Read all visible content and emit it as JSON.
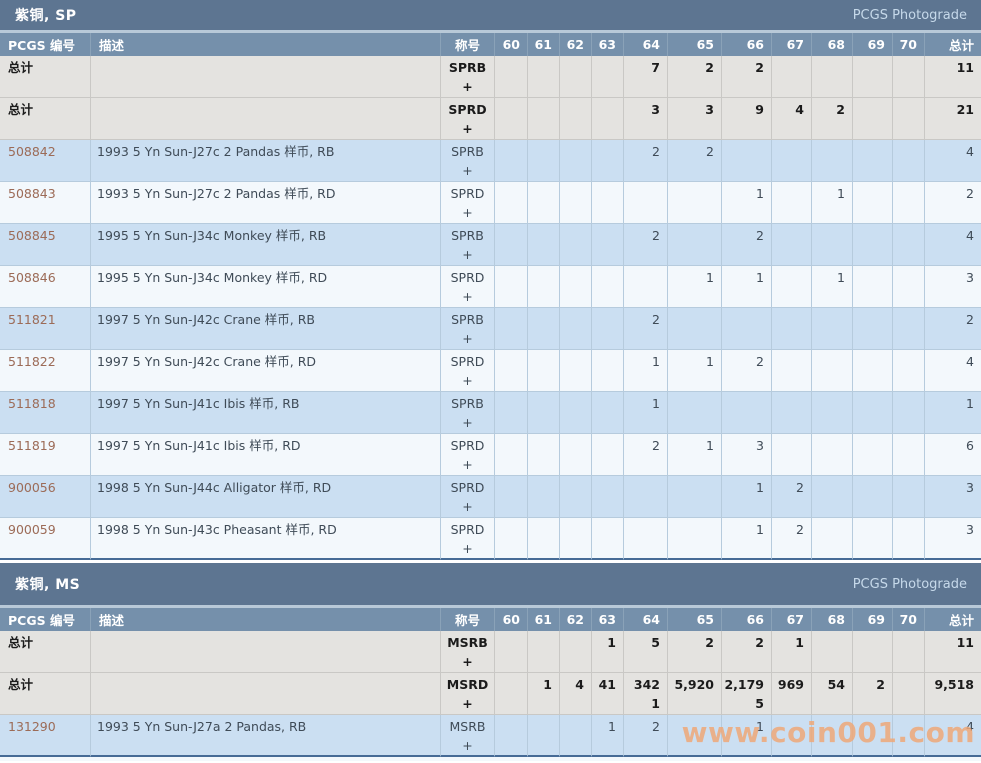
{
  "table_headers": {
    "number": "PCGS 编号",
    "description": "描述",
    "designation": "称号",
    "total": "总计"
  },
  "grade_columns": [
    "60",
    "61",
    "62",
    "63",
    "64",
    "65",
    "66",
    "67",
    "68",
    "69",
    "70"
  ],
  "total_label": "总计",
  "watermark": "www.coin001.com",
  "colors": {
    "section_bar": "#5d7591",
    "header_row": "#7590ab",
    "total_row": "#e4e3e0",
    "row_blue": "#cbdff2",
    "row_white": "#f3f8fc",
    "link": "#9c6b57",
    "table_border": "#466b96",
    "watermark": "#efa878"
  },
  "sections": [
    {
      "title": "紫铜, SP",
      "photograde_label": "PCGS Photograde",
      "rows": [
        {
          "number": "总计",
          "total_row": true,
          "description": "",
          "designation": "SPRB",
          "plus": "+",
          "grades": {
            "64": "7",
            "65": "2",
            "66": "2"
          },
          "plus_grades": {},
          "total": "11"
        },
        {
          "number": "总计",
          "total_row": true,
          "description": "",
          "designation": "SPRD",
          "plus": "+",
          "grades": {
            "64": "3",
            "65": "3",
            "66": "9",
            "67": "4",
            "68": "2"
          },
          "plus_grades": {},
          "total": "21"
        },
        {
          "number": "508842",
          "total_row": false,
          "description": "1993 5 Yn Sun-J27c 2 Pandas 样币, RB",
          "designation": "SPRB",
          "plus": "+",
          "grades": {
            "64": "2",
            "65": "2"
          },
          "plus_grades": {},
          "total": "4"
        },
        {
          "number": "508843",
          "total_row": false,
          "description": "1993 5 Yn Sun-J27c 2 Pandas 样币, RD",
          "designation": "SPRD",
          "plus": "+",
          "grades": {
            "66": "1",
            "68": "1"
          },
          "plus_grades": {},
          "total": "2"
        },
        {
          "number": "508845",
          "total_row": false,
          "description": "1995 5 Yn Sun-J34c Monkey 样币, RB",
          "designation": "SPRB",
          "plus": "+",
          "grades": {
            "64": "2",
            "66": "2"
          },
          "plus_grades": {},
          "total": "4"
        },
        {
          "number": "508846",
          "total_row": false,
          "description": "1995 5 Yn Sun-J34c Monkey 样币, RD",
          "designation": "SPRD",
          "plus": "+",
          "grades": {
            "65": "1",
            "66": "1",
            "68": "1"
          },
          "plus_grades": {},
          "total": "3"
        },
        {
          "number": "511821",
          "total_row": false,
          "description": "1997 5 Yn Sun-J42c Crane 样币, RB",
          "designation": "SPRB",
          "plus": "+",
          "grades": {
            "64": "2"
          },
          "plus_grades": {},
          "total": "2"
        },
        {
          "number": "511822",
          "total_row": false,
          "description": "1997 5 Yn Sun-J42c Crane 样币, RD",
          "designation": "SPRD",
          "plus": "+",
          "grades": {
            "64": "1",
            "65": "1",
            "66": "2"
          },
          "plus_grades": {},
          "total": "4"
        },
        {
          "number": "511818",
          "total_row": false,
          "description": "1997 5 Yn Sun-J41c Ibis 样币, RB",
          "designation": "SPRB",
          "plus": "+",
          "grades": {
            "64": "1"
          },
          "plus_grades": {},
          "total": "1"
        },
        {
          "number": "511819",
          "total_row": false,
          "description": "1997 5 Yn Sun-J41c Ibis 样币, RD",
          "designation": "SPRD",
          "plus": "+",
          "grades": {
            "64": "2",
            "65": "1",
            "66": "3"
          },
          "plus_grades": {},
          "total": "6"
        },
        {
          "number": "900056",
          "total_row": false,
          "description": "1998 5 Yn Sun-J44c Alligator 样币, RD",
          "designation": "SPRD",
          "plus": "+",
          "grades": {
            "66": "1",
            "67": "2"
          },
          "plus_grades": {},
          "total": "3"
        },
        {
          "number": "900059",
          "total_row": false,
          "description": "1998 5 Yn Sun-J43c Pheasant 样币, RD",
          "designation": "SPRD",
          "plus": "+",
          "grades": {
            "66": "1",
            "67": "2"
          },
          "plus_grades": {},
          "total": "3"
        }
      ]
    },
    {
      "title": "紫铜, MS",
      "photograde_label": "PCGS Photograde",
      "rows": [
        {
          "number": "总计",
          "total_row": true,
          "description": "",
          "designation": "MSRB",
          "plus": "+",
          "grades": {
            "63": "1",
            "64": "5",
            "65": "2",
            "66": "2",
            "67": "1"
          },
          "plus_grades": {},
          "total": "11"
        },
        {
          "number": "总计",
          "total_row": true,
          "description": "",
          "designation": "MSRD",
          "plus": "+",
          "grades": {
            "61": "1",
            "62": "4",
            "63": "41",
            "64": "342",
            "65": "5,920",
            "66": "2,179",
            "67": "969",
            "68": "54",
            "69": "2"
          },
          "plus_grades": {
            "64": "1",
            "66": "5"
          },
          "total": "9,518"
        },
        {
          "number": "131290",
          "total_row": false,
          "description": "1993 5 Yn Sun-J27a 2 Pandas, RB",
          "designation": "MSRB",
          "plus": "+",
          "grades": {
            "63": "1",
            "64": "2",
            "66": "1"
          },
          "plus_grades": {},
          "total": "4"
        }
      ]
    }
  ]
}
